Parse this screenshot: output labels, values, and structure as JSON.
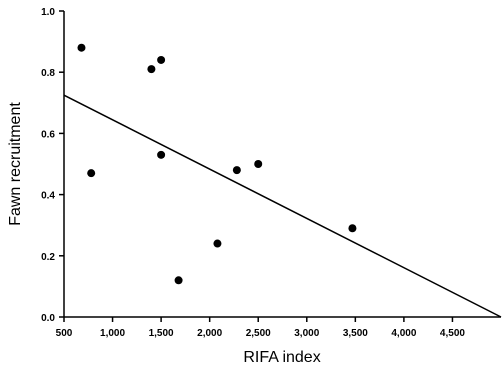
{
  "chart_data": {
    "type": "scatter",
    "title": "",
    "xlabel": "RIFA index",
    "ylabel": "Fawn recruitment",
    "xlim": [
      500,
      5000
    ],
    "ylim": [
      0,
      1.0
    ],
    "x_ticks": [
      500,
      1000,
      1500,
      2000,
      2500,
      3000,
      3500,
      4000,
      4500
    ],
    "x_tick_labels": [
      "500",
      "1,000",
      "1,500",
      "2,000",
      "2,500",
      "3,000",
      "3,500",
      "4,000",
      "4,500"
    ],
    "y_ticks": [
      0,
      0.2,
      0.4,
      0.6,
      0.8,
      1.0
    ],
    "y_tick_labels": [
      "0.0",
      "0.2",
      "0.4",
      "0.6",
      "0.8",
      "1.0"
    ],
    "grid": false,
    "legend": "none",
    "points": [
      {
        "x": 680,
        "y": 0.88
      },
      {
        "x": 780,
        "y": 0.47
      },
      {
        "x": 1400,
        "y": 0.81
      },
      {
        "x": 1500,
        "y": 0.84
      },
      {
        "x": 1500,
        "y": 0.53
      },
      {
        "x": 1680,
        "y": 0.12
      },
      {
        "x": 2080,
        "y": 0.24
      },
      {
        "x": 2280,
        "y": 0.48
      },
      {
        "x": 2500,
        "y": 0.5
      },
      {
        "x": 3470,
        "y": 0.29
      }
    ],
    "trendline": {
      "x": [
        500,
        5000
      ],
      "y": [
        0.725,
        0.0
      ]
    },
    "colors": {
      "points": "#000000",
      "line": "#000000",
      "axes": "#000000"
    }
  }
}
